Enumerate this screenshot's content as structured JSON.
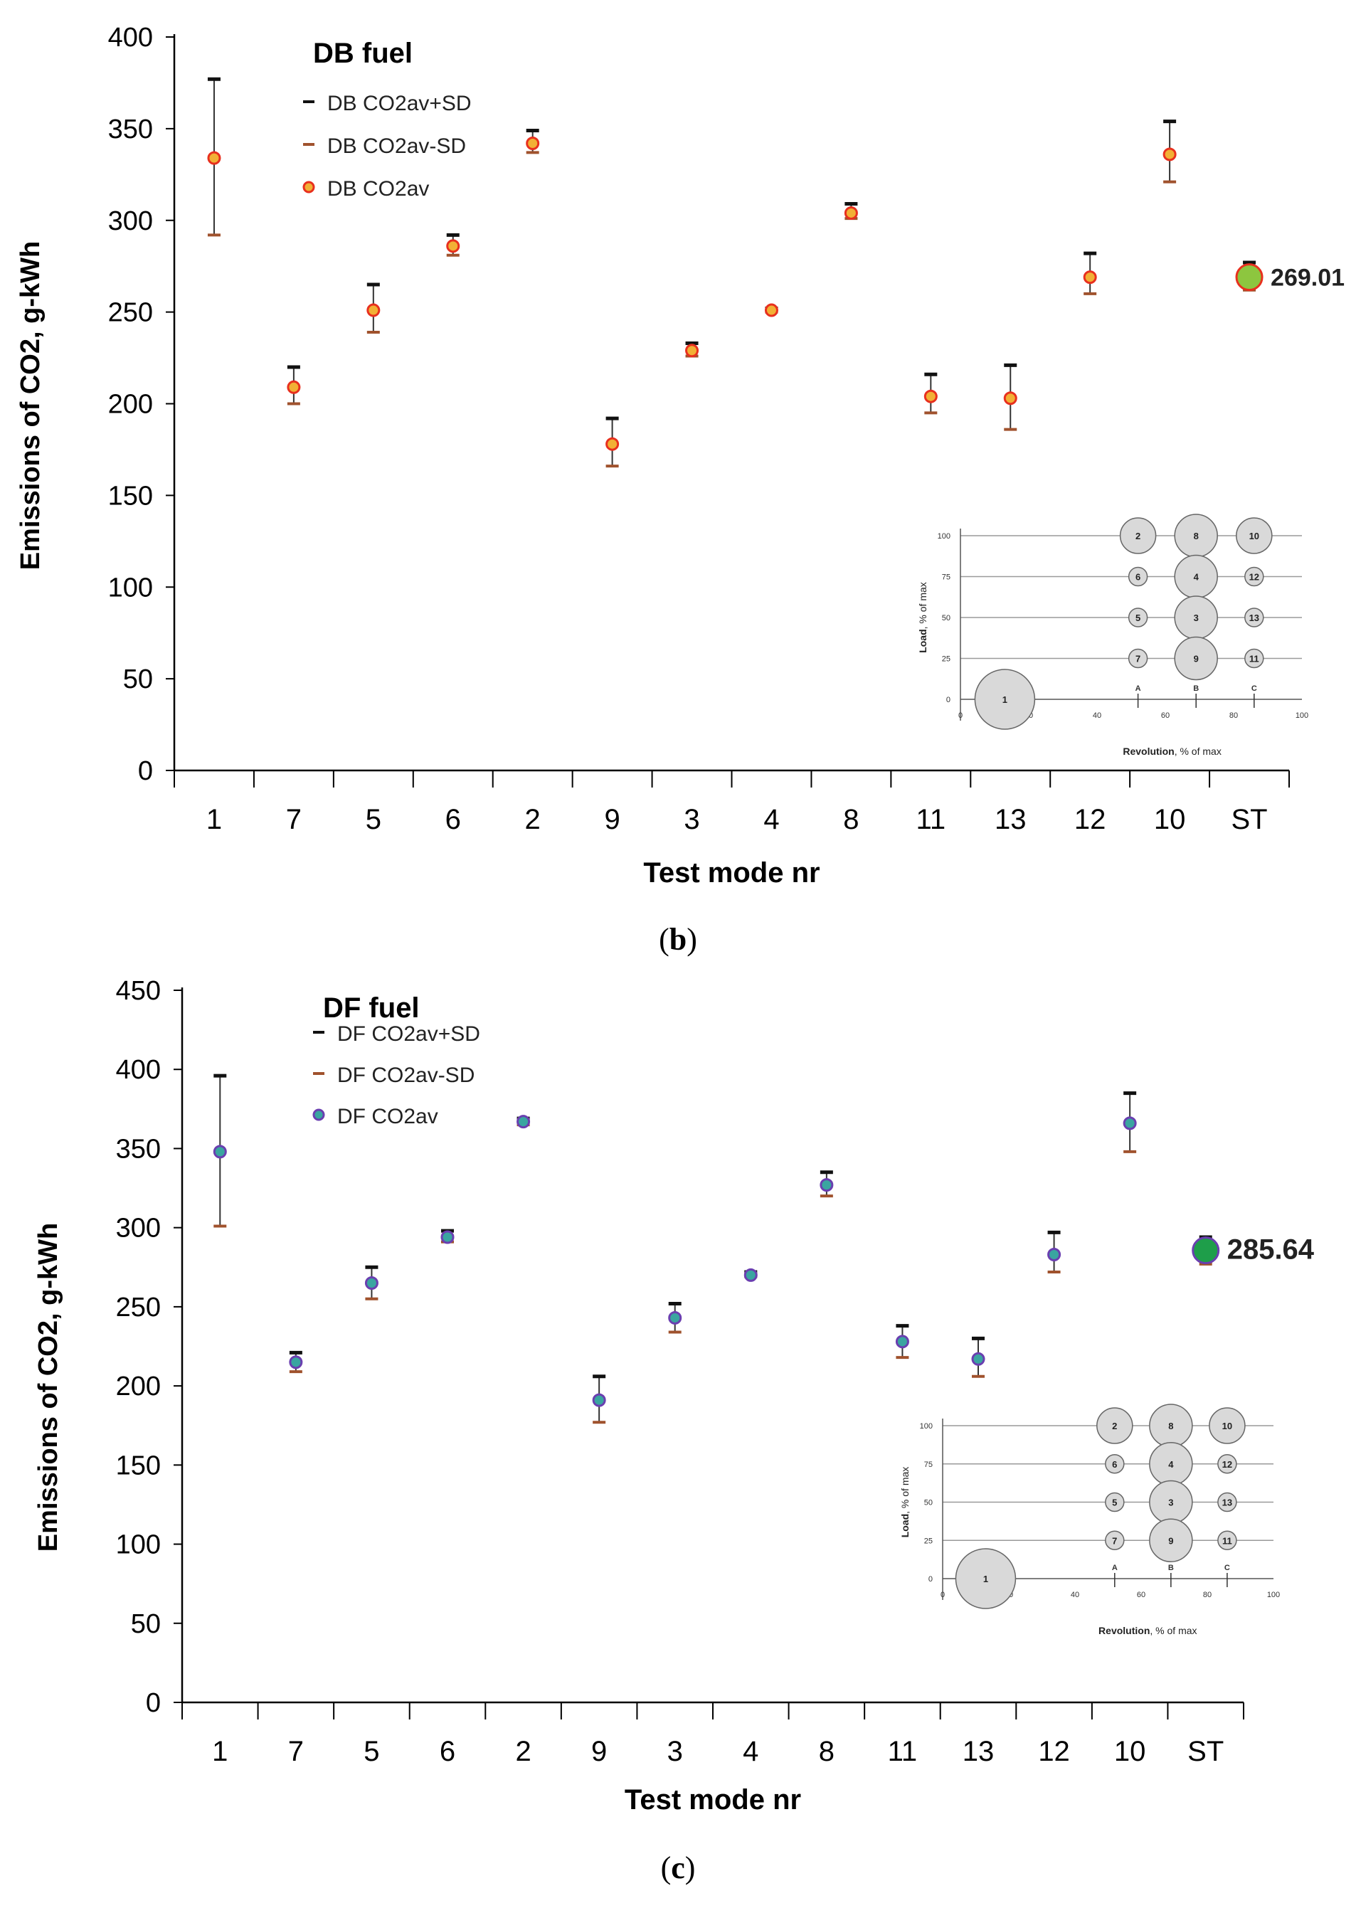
{
  "chart_data": [
    {
      "type": "scatter",
      "panel": "(b)",
      "title": "DB fuel",
      "xlabel": "Test mode nr",
      "ylabel": "Emissions of CO2, g-kWh",
      "ylim": [
        0,
        400
      ],
      "yticks": [
        0,
        50,
        100,
        150,
        200,
        250,
        300,
        350,
        400
      ],
      "categories": [
        "1",
        "7",
        "5",
        "6",
        "2",
        "9",
        "3",
        "4",
        "8",
        "11",
        "13",
        "12",
        "10",
        "ST"
      ],
      "series": [
        {
          "name": "DB CO2av+SD",
          "values": [
            377,
            220,
            265,
            292,
            349,
            192,
            233,
            252,
            309,
            216,
            221,
            282,
            354,
            277
          ]
        },
        {
          "name": "DB CO2av-SD",
          "values": [
            292,
            200,
            239,
            281,
            337,
            166,
            226,
            250,
            301,
            195,
            186,
            260,
            321,
            262
          ]
        },
        {
          "name": "DB CO2av",
          "values": [
            334,
            209,
            251,
            286,
            342,
            178,
            229,
            251,
            304,
            204,
            203,
            269,
            336,
            269.01
          ]
        }
      ],
      "st_label": "269.01",
      "legend_position": "top-left",
      "grid": false,
      "colors": {
        "plus": "#111111",
        "minus": "#a0522d",
        "avg_fill": "#f2b035",
        "avg_edge": "#e8301e",
        "st_fill": "#8dc63f",
        "st_edge": "#e8301e"
      }
    },
    {
      "type": "scatter",
      "panel": "(c)",
      "title": "DF fuel",
      "xlabel": "Test mode nr",
      "ylabel": "Emissions of CO2, g-kWh",
      "ylim": [
        0,
        450
      ],
      "yticks": [
        0,
        50,
        100,
        150,
        200,
        250,
        300,
        350,
        400,
        450
      ],
      "categories": [
        "1",
        "7",
        "5",
        "6",
        "2",
        "9",
        "3",
        "4",
        "8",
        "11",
        "13",
        "12",
        "10",
        "ST"
      ],
      "series": [
        {
          "name": "DF CO2av+SD",
          "values": [
            396,
            221,
            275,
            298,
            369,
            206,
            252,
            272,
            335,
            238,
            230,
            297,
            385,
            294
          ]
        },
        {
          "name": "DF CO2av-SD",
          "values": [
            301,
            209,
            255,
            291,
            365,
            177,
            234,
            269,
            320,
            218,
            206,
            272,
            348,
            277
          ]
        },
        {
          "name": "DF CO2av",
          "values": [
            348,
            215,
            265,
            294,
            367,
            191,
            243,
            270,
            327,
            228,
            217,
            283,
            366,
            285.64
          ]
        }
      ],
      "st_label": "285.64",
      "legend_position": "top-left",
      "grid": false,
      "colors": {
        "plus": "#111111",
        "minus": "#a0522d",
        "avg_fill": "#3aa5a0",
        "avg_edge": "#6a3fb0",
        "st_fill": "#1e9e4a",
        "st_edge": "#6a3fb0"
      }
    }
  ],
  "inset": {
    "xlabel_bold": "Revolution",
    "xlabel_rest": ", % of max",
    "ylabel_bold": "Load",
    "ylabel_rest": ", % of max",
    "xticks": [
      0,
      20,
      40,
      60,
      80,
      100
    ],
    "yticks": [
      0,
      25,
      50,
      75,
      100
    ],
    "markers": [
      "A",
      "B",
      "C"
    ],
    "marker_x": [
      52,
      69,
      86
    ],
    "modes": [
      {
        "label": "1",
        "x": 13,
        "y": 0,
        "size": "xl"
      },
      {
        "label": "2",
        "x": 52,
        "y": 100,
        "size": "m"
      },
      {
        "label": "8",
        "x": 69,
        "y": 100,
        "size": "l"
      },
      {
        "label": "10",
        "x": 86,
        "y": 100,
        "size": "m"
      },
      {
        "label": "6",
        "x": 52,
        "y": 75,
        "size": "s"
      },
      {
        "label": "4",
        "x": 69,
        "y": 75,
        "size": "l"
      },
      {
        "label": "12",
        "x": 86,
        "y": 75,
        "size": "s"
      },
      {
        "label": "5",
        "x": 52,
        "y": 50,
        "size": "s"
      },
      {
        "label": "3",
        "x": 69,
        "y": 50,
        "size": "l"
      },
      {
        "label": "13",
        "x": 86,
        "y": 50,
        "size": "s"
      },
      {
        "label": "7",
        "x": 52,
        "y": 25,
        "size": "s"
      },
      {
        "label": "9",
        "x": 69,
        "y": 25,
        "size": "l"
      },
      {
        "label": "11",
        "x": 86,
        "y": 25,
        "size": "s"
      }
    ]
  },
  "captions": [
    {
      "open": "(",
      "letter": "b",
      "close": ")"
    },
    {
      "open": "(",
      "letter": "c",
      "close": ")"
    }
  ]
}
